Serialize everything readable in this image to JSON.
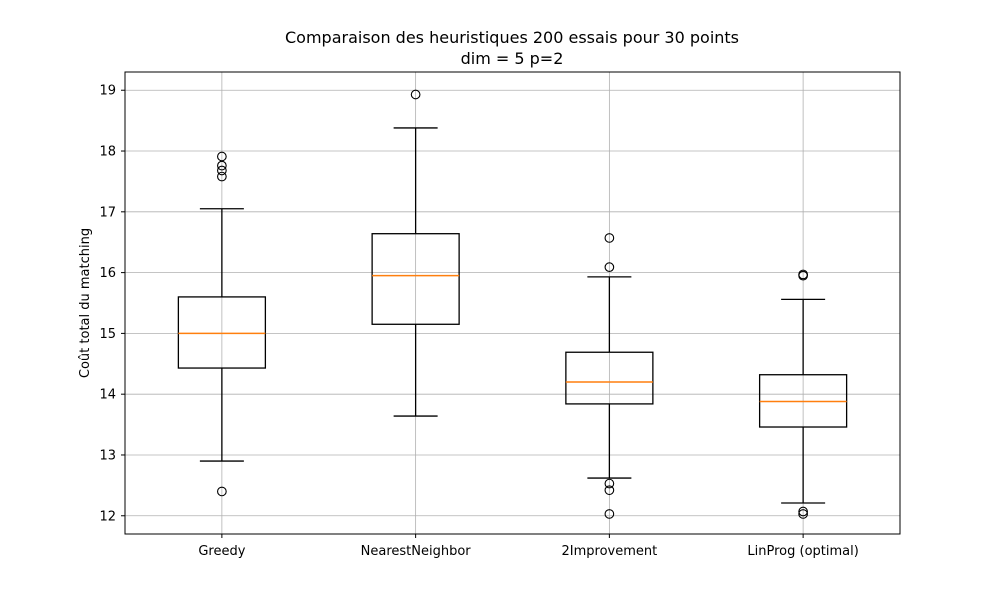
{
  "chart_data": {
    "type": "box",
    "title": "Comparaison des heuristiques   200 essais pour 30 points",
    "subtitle": "dim = 5 p=2",
    "xlabel": "",
    "ylabel": "Coût total du matching",
    "ylim": [
      11.7,
      19.3
    ],
    "yticks": [
      "12",
      "13",
      "14",
      "15",
      "16",
      "17",
      "18",
      "19"
    ],
    "grid": true,
    "colors": {
      "box": "#000000",
      "median": "#ff7f0e",
      "grid": "#b0b0b0"
    },
    "categories": [
      "Greedy",
      "NearestNeighbor",
      "2Improvement",
      "LinProg (optimal)"
    ],
    "boxes": [
      {
        "name": "Greedy",
        "whisker_low": 12.9,
        "q1": 14.43,
        "median": 15.0,
        "q3": 15.6,
        "whisker_high": 17.05,
        "outliers": [
          12.4,
          17.58,
          17.68,
          17.76,
          17.91
        ]
      },
      {
        "name": "NearestNeighbor",
        "whisker_low": 13.64,
        "q1": 15.15,
        "median": 15.95,
        "q3": 16.64,
        "whisker_high": 18.38,
        "outliers": [
          18.93
        ]
      },
      {
        "name": "2Improvement",
        "whisker_low": 12.62,
        "q1": 13.84,
        "median": 14.2,
        "q3": 14.69,
        "whisker_high": 15.93,
        "outliers": [
          12.03,
          12.42,
          12.53,
          16.09,
          16.57
        ]
      },
      {
        "name": "LinProg (optimal)",
        "whisker_low": 12.21,
        "q1": 13.46,
        "median": 13.88,
        "q3": 14.32,
        "whisker_high": 15.56,
        "outliers": [
          12.03,
          12.07,
          15.95,
          15.97
        ]
      }
    ]
  }
}
